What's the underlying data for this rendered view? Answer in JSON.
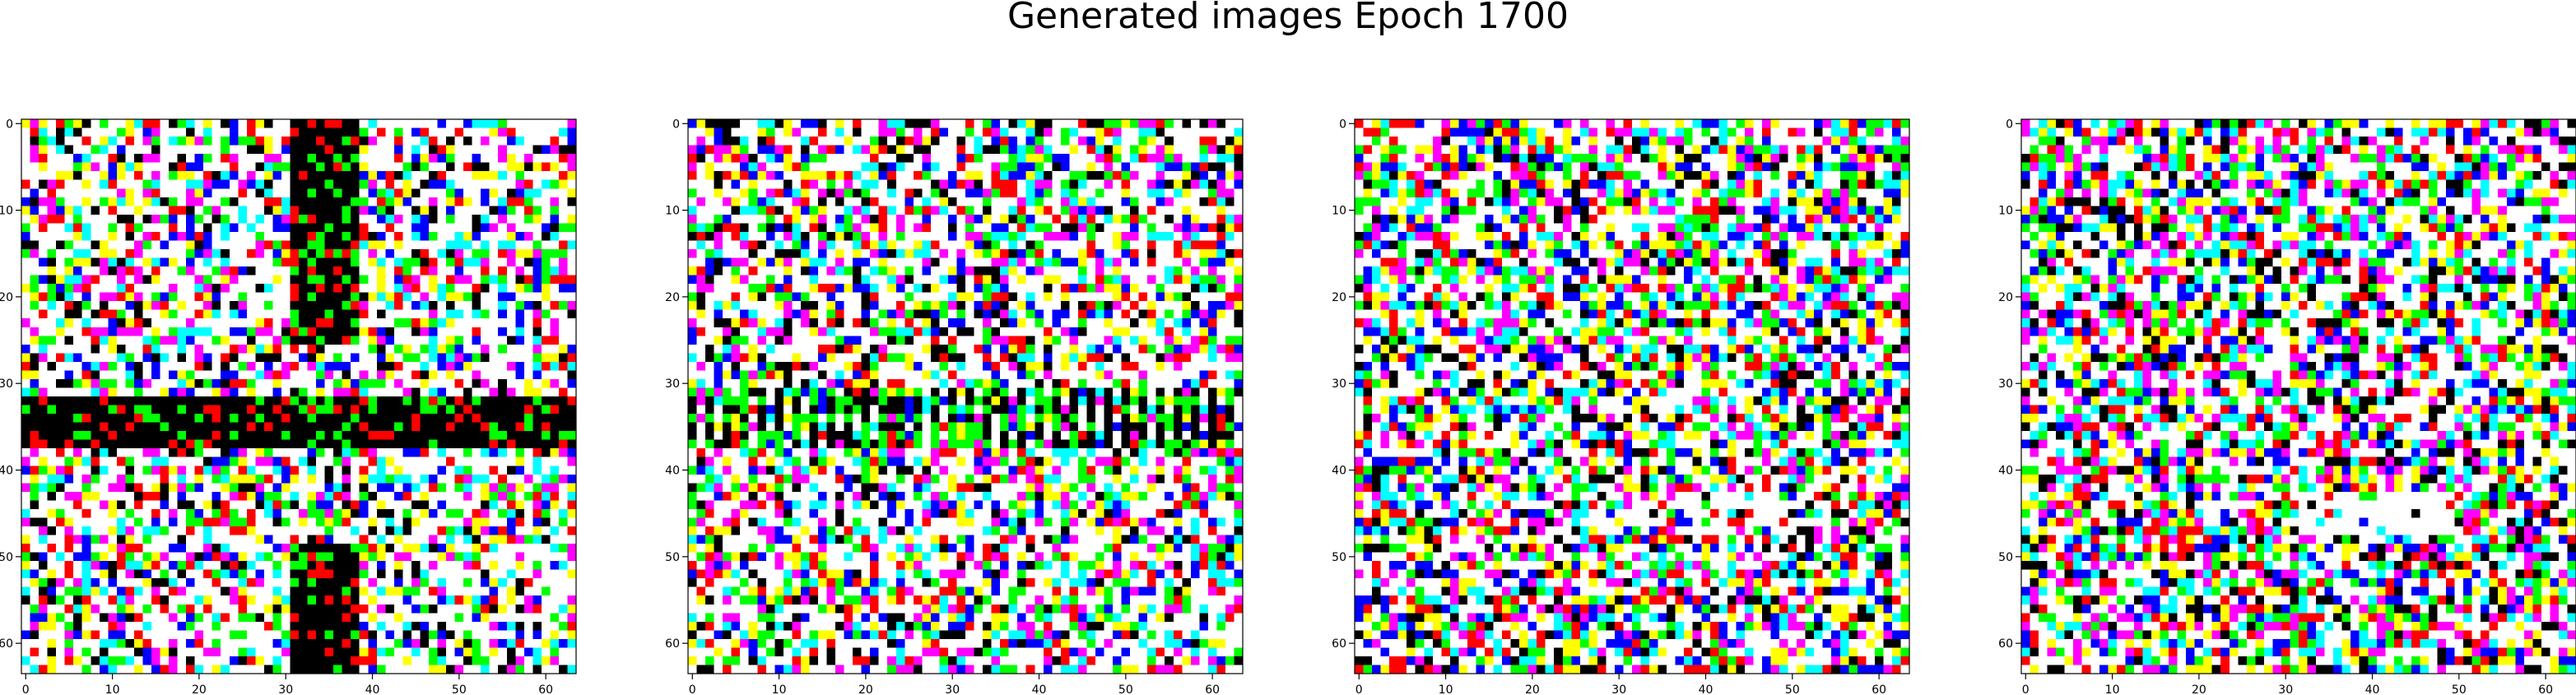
{
  "figure": {
    "title": "Generated images Epoch 1700"
  },
  "panels": [
    {
      "name": "generated-image-1",
      "x_ticks": [
        "0",
        "10",
        "20",
        "30",
        "40",
        "50",
        "60"
      ],
      "y_ticks": [
        "0",
        "10",
        "20",
        "30",
        "40",
        "50",
        "60"
      ]
    },
    {
      "name": "generated-image-2",
      "x_ticks": [
        "0",
        "10",
        "20",
        "30",
        "40",
        "50",
        "60"
      ],
      "y_ticks": [
        "0",
        "10",
        "20",
        "30",
        "40",
        "50",
        "60"
      ]
    },
    {
      "name": "generated-image-3",
      "x_ticks": [
        "0",
        "10",
        "20",
        "30",
        "40",
        "50",
        "60"
      ],
      "y_ticks": [
        "0",
        "10",
        "20",
        "30",
        "40",
        "50",
        "60"
      ]
    },
    {
      "name": "generated-image-4",
      "x_ticks": [
        "0",
        "10",
        "20",
        "30",
        "40",
        "50",
        "60"
      ],
      "y_ticks": [
        "0",
        "10",
        "20",
        "30",
        "40",
        "50",
        "60"
      ]
    }
  ],
  "palette": [
    "#ffffff",
    "#00ffff",
    "#ff00ff",
    "#ffff00",
    "#000000",
    "#0000ff",
    "#00ff00",
    "#ff0000"
  ]
}
